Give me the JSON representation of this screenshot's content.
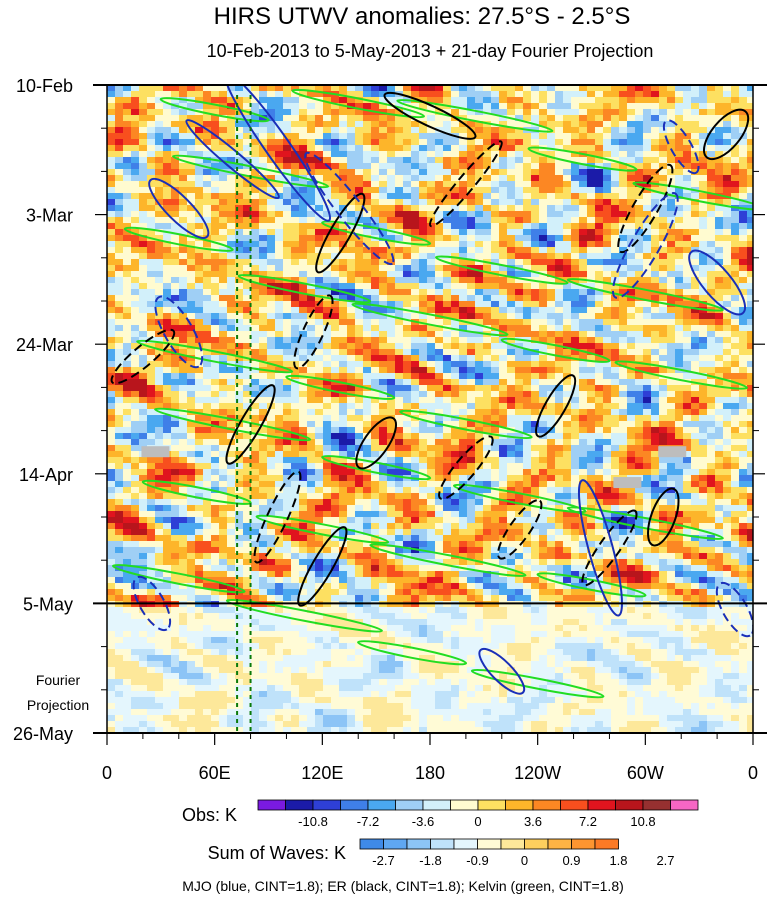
{
  "chart_data": {
    "type": "heatmap",
    "title": "HIRS UTWV anomalies: 27.5°S - 2.5°S",
    "subtitle": "10-Feb-2013 to 5-May-2013 + 21-day Fourier Projection",
    "x_ticks": [
      "0",
      "60E",
      "120E",
      "180",
      "120W",
      "60W",
      "0"
    ],
    "x_lon": [
      0,
      60,
      120,
      180,
      240,
      300,
      360
    ],
    "y_ticks": [
      "10-Feb",
      "3-Mar",
      "24-Mar",
      "14-Apr",
      "5-May",
      "26-May"
    ],
    "y_day": [
      0,
      21,
      42,
      63,
      84,
      105
    ],
    "obs_end_label": "5-May",
    "projection_label": [
      "Fourier",
      "Projection"
    ],
    "reference_lons": [
      72.5,
      80
    ],
    "obs_colorbar": {
      "title": "Obs: K",
      "labels": [
        "-10.8",
        "-7.2",
        "-3.6",
        "0",
        "3.6",
        "7.2",
        "10.8"
      ],
      "colors": [
        "#7a1ae0",
        "#1b1ba8",
        "#2e3fd6",
        "#3f7fe8",
        "#4aa8f0",
        "#9fcff5",
        "#d2f0fa",
        "#fffbd0",
        "#fde061",
        "#fdb52a",
        "#fc8723",
        "#f84f1e",
        "#e0141e",
        "#b8151c",
        "#963030",
        "#f766c4"
      ]
    },
    "waves_colorbar": {
      "title": "Sum of Waves: K",
      "labels": [
        "-2.7",
        "-1.8",
        "-0.9",
        "0",
        "0.9",
        "1.8",
        "2.7"
      ],
      "colors": [
        "#3f8ae8",
        "#5fa7f2",
        "#8cc4f6",
        "#bfe2fa",
        "#e4f6fd",
        "#fffbd6",
        "#fde89a",
        "#fdcf5e",
        "#fdb344",
        "#fd9530",
        "#fc7a25"
      ]
    },
    "contour_legend": "MJO (blue, CINT=1.8); ER (black, CINT=1.8); Kelvin (green, CINT=1.8)",
    "series": [
      {
        "name": "MJO",
        "color": "#1a2fb8",
        "cint": 1.8
      },
      {
        "name": "ER",
        "color": "#000000",
        "cint": 1.8
      },
      {
        "name": "Kelvin",
        "color": "#22dd22",
        "cint": 1.8
      }
    ],
    "missing_data_patches": [
      {
        "lon": 27,
        "day": 59.5
      },
      {
        "lon": 315,
        "day": 59.5
      },
      {
        "lon": 290,
        "day": 64.5
      }
    ]
  }
}
